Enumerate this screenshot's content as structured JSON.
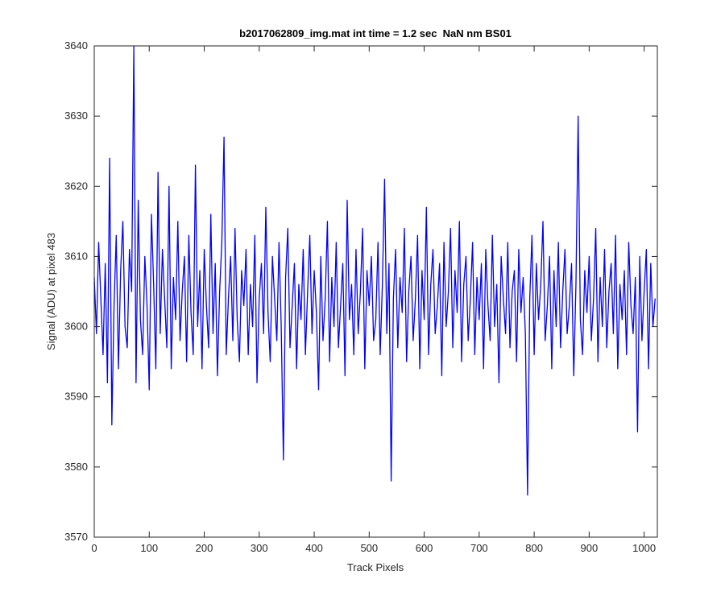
{
  "chart_data": {
    "type": "line",
    "title": "b2017062809_img.mat int time = 1.2 sec  NaN nm BS01",
    "x_label": "Track Pixels",
    "y_label": "Signal (ADU) at pixel 483",
    "color": "#0000ff",
    "xlim": [
      0,
      1024
    ],
    "xticks": [
      0,
      100,
      200,
      300,
      400,
      500,
      600,
      700,
      800,
      900,
      1000
    ],
    "ylim": [
      3570,
      3640
    ],
    "yticks": [
      3570,
      3580,
      3590,
      3600,
      3610,
      3620,
      3630,
      3640
    ],
    "grid": false,
    "x": [
      0,
      4,
      8,
      12,
      16,
      20,
      24,
      28,
      32,
      36,
      40,
      44,
      48,
      52,
      56,
      60,
      64,
      68,
      72,
      76,
      80,
      84,
      88,
      92,
      96,
      100,
      104,
      108,
      112,
      116,
      120,
      124,
      128,
      132,
      136,
      140,
      144,
      148,
      152,
      156,
      160,
      164,
      168,
      172,
      176,
      180,
      184,
      188,
      192,
      196,
      200,
      204,
      208,
      212,
      216,
      220,
      224,
      228,
      232,
      236,
      240,
      244,
      248,
      252,
      256,
      260,
      264,
      268,
      272,
      276,
      280,
      284,
      288,
      292,
      296,
      300,
      304,
      308,
      312,
      316,
      320,
      324,
      328,
      332,
      336,
      340,
      344,
      348,
      352,
      356,
      360,
      364,
      368,
      372,
      376,
      380,
      384,
      388,
      392,
      396,
      400,
      404,
      408,
      412,
      416,
      420,
      424,
      428,
      432,
      436,
      440,
      444,
      448,
      452,
      456,
      460,
      464,
      468,
      472,
      476,
      480,
      484,
      488,
      492,
      496,
      500,
      504,
      508,
      512,
      516,
      520,
      524,
      528,
      532,
      536,
      540,
      544,
      548,
      552,
      556,
      560,
      564,
      568,
      572,
      576,
      580,
      584,
      588,
      592,
      596,
      600,
      604,
      608,
      612,
      616,
      620,
      624,
      628,
      632,
      636,
      640,
      644,
      648,
      652,
      656,
      660,
      664,
      668,
      672,
      676,
      680,
      684,
      688,
      692,
      696,
      700,
      704,
      708,
      712,
      716,
      720,
      724,
      728,
      732,
      736,
      740,
      744,
      748,
      752,
      756,
      760,
      764,
      768,
      772,
      776,
      780,
      784,
      788,
      792,
      796,
      800,
      804,
      808,
      812,
      816,
      820,
      824,
      828,
      832,
      836,
      840,
      844,
      848,
      852,
      856,
      860,
      864,
      868,
      872,
      876,
      880,
      884,
      888,
      892,
      896,
      900,
      904,
      908,
      912,
      916,
      920,
      924,
      928,
      932,
      936,
      940,
      944,
      948,
      952,
      956,
      960,
      964,
      968,
      972,
      976,
      980,
      984,
      988,
      992,
      996,
      1000,
      1004,
      1008,
      1012,
      1016,
      1020
    ],
    "values": [
      3607,
      3599,
      3612,
      3604,
      3596,
      3609,
      3592,
      3624,
      3586,
      3603,
      3613,
      3594,
      3608,
      3615,
      3600,
      3597,
      3611,
      3605,
      3640,
      3592,
      3618,
      3601,
      3596,
      3610,
      3603,
      3591,
      3616,
      3606,
      3594,
      3622,
      3599,
      3611,
      3604,
      3597,
      3620,
      3594,
      3607,
      3601,
      3615,
      3598,
      3605,
      3610,
      3595,
      3613,
      3602,
      3596,
      3623,
      3600,
      3608,
      3594,
      3611,
      3603,
      3597,
      3616,
      3599,
      3609,
      3593,
      3605,
      3612,
      3627,
      3596,
      3604,
      3610,
      3598,
      3614,
      3601,
      3595,
      3608,
      3603,
      3611,
      3596,
      3606,
      3600,
      3613,
      3592,
      3604,
      3609,
      3599,
      3617,
      3602,
      3595,
      3610,
      3604,
      3598,
      3612,
      3600,
      3581,
      3607,
      3614,
      3597,
      3603,
      3609,
      3594,
      3606,
      3601,
      3611,
      3596,
      3605,
      3613,
      3599,
      3608,
      3602,
      3591,
      3610,
      3598,
      3604,
      3615,
      3595,
      3607,
      3600,
      3612,
      3597,
      3603,
      3609,
      3593,
      3618,
      3601,
      3606,
      3596,
      3611,
      3599,
      3605,
      3614,
      3594,
      3608,
      3603,
      3610,
      3598,
      3601,
      3612,
      3596,
      3606,
      3621,
      3599,
      3609,
      3578,
      3604,
      3611,
      3597,
      3607,
      3602,
      3614,
      3595,
      3605,
      3610,
      3598,
      3604,
      3613,
      3594,
      3608,
      3601,
      3617,
      3596,
      3606,
      3611,
      3599,
      3603,
      3609,
      3593,
      3612,
      3600,
      3605,
      3614,
      3597,
      3608,
      3602,
      3615,
      3595,
      3606,
      3610,
      3598,
      3604,
      3612,
      3596,
      3607,
      3601,
      3609,
      3594,
      3611,
      3603,
      3598,
      3613,
      3600,
      3606,
      3592,
      3610,
      3604,
      3599,
      3612,
      3597,
      3605,
      3608,
      3595,
      3611,
      3602,
      3607,
      3599,
      3576,
      3604,
      3613,
      3596,
      3609,
      3601,
      3606,
      3615,
      3598,
      3603,
      3610,
      3594,
      3608,
      3600,
      3612,
      3597,
      3605,
      3611,
      3599,
      3603,
      3609,
      3593,
      3606,
      3630,
      3601,
      3596,
      3608,
      3602,
      3610,
      3598,
      3604,
      3614,
      3595,
      3607,
      3600,
      3611,
      3597,
      3605,
      3609,
      3599,
      3613,
      3594,
      3606,
      3601,
      3608,
      3596,
      3612,
      3603,
      3599,
      3607,
      3585,
      3610,
      3598,
      3605,
      3611,
      3594,
      3609,
      3600,
      3604
    ]
  }
}
